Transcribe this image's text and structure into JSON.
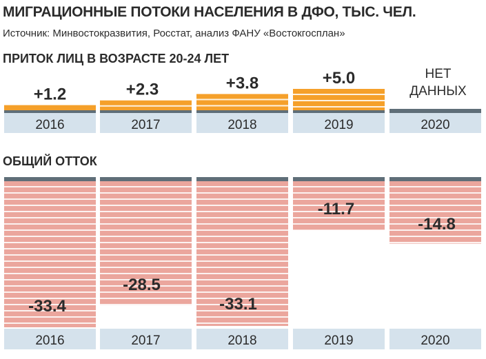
{
  "title": "МИГРАЦИОННЫЕ ПОТОКИ НАСЕЛЕНИЯ В ДФО, ТЫС. ЧЕЛ.",
  "source": "Источник: Минвостокразвития, Росстат, анализ ФАНУ «Востокгосплан»",
  "colors": {
    "inflow": "#f5a02a",
    "outflow": "#eba69d",
    "baseline": "#5f6e78",
    "year_band": "#d5e2ec",
    "label": "#2b2b2b"
  },
  "chart_data": [
    {
      "type": "bar",
      "title": "ПРИТОК ЛИЦ В ВОЗРАСТЕ 20-24 ЛЕТ",
      "categories": [
        "2016",
        "2017",
        "2018",
        "2019",
        "2020"
      ],
      "values": [
        1.2,
        2.3,
        3.8,
        5.0,
        null
      ],
      "value_labels": [
        "+1.2",
        "+2.3",
        "+3.8",
        "+5.0",
        "НЕТ ДАННЫХ"
      ],
      "ylim": [
        0,
        5.0
      ]
    },
    {
      "type": "bar",
      "title": "ОБЩИЙ ОТТОК",
      "categories": [
        "2016",
        "2017",
        "2018",
        "2019",
        "2020"
      ],
      "values": [
        -33.4,
        -28.5,
        -33.1,
        -11.7,
        -14.8
      ],
      "value_labels": [
        "-33.4",
        "-28.5",
        "-33.1",
        "-11.7",
        "-14.8"
      ],
      "ylim": [
        -33.4,
        0
      ]
    }
  ]
}
